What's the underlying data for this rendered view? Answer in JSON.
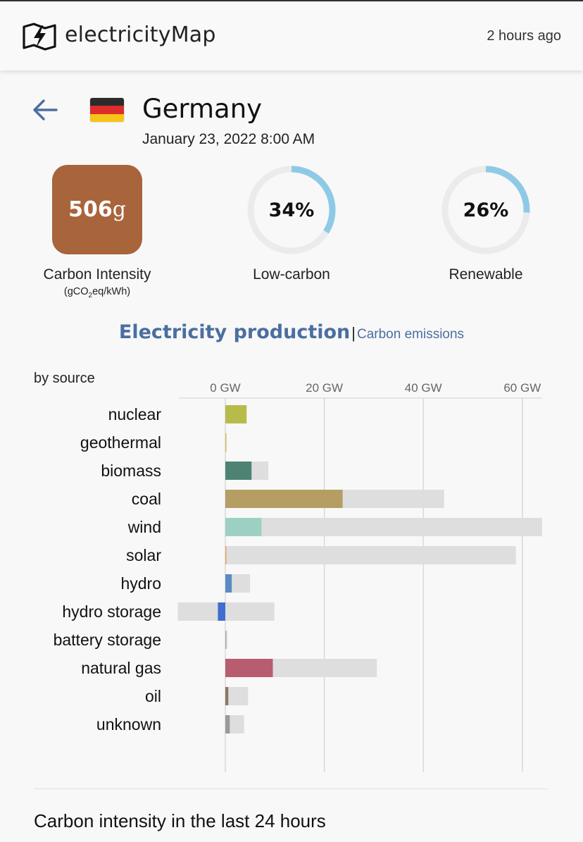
{
  "header": {
    "brand": "electricityMap",
    "updated": "2 hours ago"
  },
  "zone": {
    "country": "Germany",
    "date": "January 23, 2022 8:00 AM",
    "flag_colors": [
      "#2b2b2b",
      "#dd2d2d",
      "#f5c518"
    ]
  },
  "metrics": {
    "carbon_intensity": {
      "value": "506",
      "unit": "g",
      "label": "Carbon Intensity",
      "sub_pre": "(gCO",
      "sub_sub": "2",
      "sub_post": "eq/kWh)",
      "color": "#a8643b"
    },
    "low_carbon": {
      "display": "34%",
      "percent": 34,
      "label": "Low-carbon"
    },
    "renewable": {
      "display": "26%",
      "percent": 26,
      "label": "Renewable"
    },
    "gauge_color": "#8ecae6",
    "gauge_track": "#ebebeb"
  },
  "tabs": {
    "active": "Electricity production",
    "separator": "|",
    "inactive": "Carbon emissions"
  },
  "chart_data": {
    "type": "bar",
    "title": "Electricity production",
    "ylabel": "by source",
    "xlim": [
      -10,
      64
    ],
    "xticks": [
      0,
      20,
      40,
      60
    ],
    "xtick_labels": [
      "0 GW",
      "20 GW",
      "40 GW",
      "60 GW"
    ],
    "categories": [
      "nuclear",
      "geothermal",
      "biomass",
      "coal",
      "wind",
      "solar",
      "hydro",
      "hydro storage",
      "battery storage",
      "natural gas",
      "oil",
      "unknown"
    ],
    "series": [
      {
        "name": "production",
        "values": [
          4.3,
          0.1,
          5.3,
          23.7,
          7.3,
          0.2,
          1.3,
          -1.5,
          0.0,
          9.6,
          0.6,
          0.9
        ]
      },
      {
        "name": "capacity",
        "values": [
          4.3,
          0.1,
          8.7,
          44.2,
          64.0,
          58.7,
          5.0,
          9.9,
          0.4,
          30.6,
          4.6,
          3.8
        ]
      },
      {
        "name": "negative capacity",
        "values": [
          0,
          0,
          0,
          0,
          0,
          0,
          0,
          -9.6,
          0,
          0,
          0,
          0
        ]
      }
    ],
    "colors": [
      "#b8bb4b",
      "#d9c45a",
      "#4e8373",
      "#b49e63",
      "#9bd0c2",
      "#e8a35a",
      "#5a8bc4",
      "#3f6ed0",
      "#b0b0b0",
      "#b85c70",
      "#8a7a62",
      "#9a9a9a"
    ]
  },
  "footer": {
    "section_title": "Carbon intensity in the last 24 hours"
  }
}
